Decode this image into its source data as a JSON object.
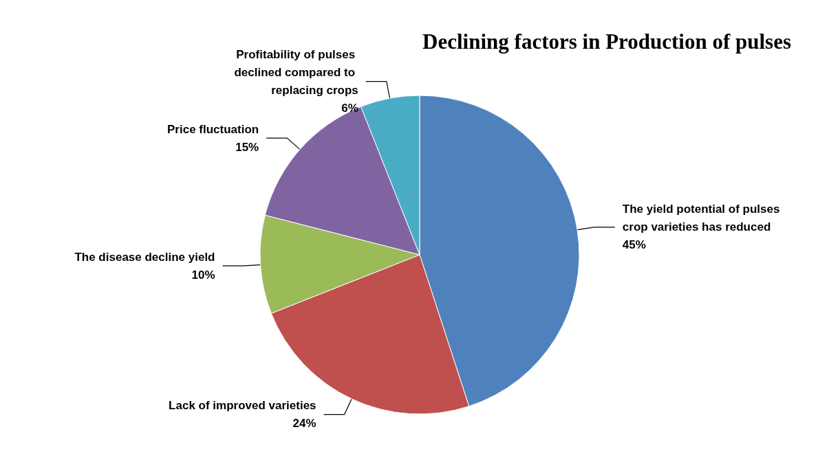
{
  "chart_data": {
    "type": "pie",
    "title": "Declining factors in Production of pulses",
    "categories": [
      "The yield potential of pulses crop varieties has reduced",
      "Lack of improved varieties",
      "The disease decline yield",
      "Price fluctuation",
      "Profitability of pulses declined compared to replacing crops"
    ],
    "value_labels": [
      "45%",
      "24%",
      "10%",
      "15%",
      "6%"
    ],
    "values": [
      45,
      24,
      10,
      15,
      6
    ],
    "colors": [
      "#4f81bd",
      "#c0504d",
      "#9bbb59",
      "#8064a2",
      "#4bacc6"
    ],
    "legend": false
  }
}
